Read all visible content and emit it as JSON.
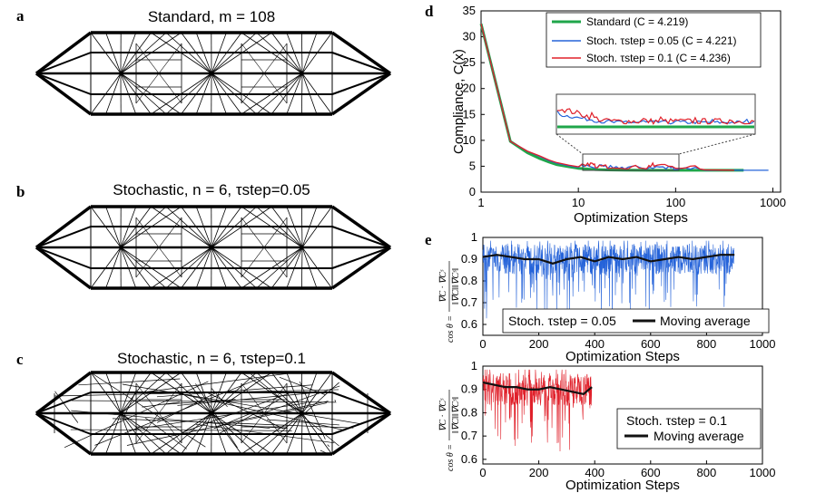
{
  "panel_labels": [
    "a",
    "b",
    "c",
    "d",
    "e"
  ],
  "panel_titles": {
    "a": "Standard, m = 108",
    "b": "Stochastic, n = 6, τstep=0.05",
    "c": "Stochastic, n = 6, τstep=0.1"
  },
  "colors": {
    "standard": "#1fa64a",
    "stoch005": "#2563d9",
    "stoch01": "#e0202a",
    "avg": "#111111"
  },
  "chart_data": [
    {
      "id": "d",
      "type": "line",
      "xscale": "log",
      "xlabel": "Optimization Steps",
      "ylabel": "Compliance, C(x)",
      "xticks": [
        "1",
        "10",
        "100",
        "1000"
      ],
      "yticks": [
        "0",
        "5",
        "10",
        "15",
        "20",
        "25",
        "30",
        "35"
      ],
      "xlim": [
        1,
        1200
      ],
      "ylim": [
        0,
        35
      ],
      "legend_position": "top-right",
      "inset": "zoom of steps 12–115, compliance 4–6",
      "series": [
        {
          "name": "Standard (C = 4.219)",
          "color": "#1fa64a",
          "x": [
            1,
            2,
            3,
            4,
            5,
            6,
            8,
            10,
            15,
            20,
            30,
            50,
            100,
            200,
            500
          ],
          "y": [
            32.5,
            9.8,
            7.6,
            6.5,
            5.8,
            5.3,
            4.9,
            4.6,
            4.35,
            4.28,
            4.24,
            4.22,
            4.22,
            4.22,
            4.219
          ]
        },
        {
          "name": "Stoch. τstep = 0.05 (C = 4.221)",
          "color": "#2563d9",
          "x": [
            1,
            2,
            3,
            4,
            5,
            6,
            8,
            10,
            15,
            20,
            30,
            50,
            80,
            100,
            200,
            500,
            900
          ],
          "y": [
            32.5,
            9.8,
            7.9,
            6.9,
            6.1,
            5.6,
            5.1,
            4.8,
            4.6,
            4.5,
            4.45,
            4.45,
            4.5,
            4.35,
            4.23,
            4.22,
            4.221
          ]
        },
        {
          "name": "Stoch. τstep = 0.1 (C = 4.236)",
          "color": "#e0202a",
          "x": [
            1,
            2,
            3,
            4,
            5,
            6,
            8,
            10,
            13,
            15,
            20,
            30,
            50,
            60,
            100,
            200,
            400
          ],
          "y": [
            32.5,
            9.8,
            7.9,
            7.0,
            6.2,
            5.7,
            5.2,
            4.9,
            5.1,
            4.7,
            4.6,
            4.5,
            4.5,
            5.0,
            4.6,
            4.3,
            4.236
          ]
        }
      ]
    },
    {
      "id": "e1",
      "type": "line",
      "xlabel": "Optimization Steps",
      "ylabel": "cos θ = ∇C · ∇C^s / (‖∇C‖ ‖∇C^s‖)",
      "xticks": [
        "0",
        "200",
        "400",
        "600",
        "800",
        "1000"
      ],
      "yticks": [
        "0.6",
        "0.7",
        "0.8",
        "0.9",
        "1"
      ],
      "xlim": [
        0,
        1000
      ],
      "ylim": [
        0.55,
        1.0
      ],
      "series_count": 900,
      "legend_position": "bottom-center",
      "series": [
        {
          "name": "Stoch. τstep = 0.05",
          "color": "#2563d9",
          "mean": 0.9
        },
        {
          "name": "Moving average",
          "color": "#111111",
          "x": [
            0,
            50,
            100,
            150,
            200,
            250,
            300,
            350,
            400,
            450,
            500,
            550,
            600,
            650,
            700,
            750,
            800,
            850,
            900
          ],
          "y": [
            0.91,
            0.92,
            0.91,
            0.9,
            0.9,
            0.88,
            0.9,
            0.91,
            0.89,
            0.91,
            0.9,
            0.91,
            0.89,
            0.9,
            0.91,
            0.9,
            0.91,
            0.92,
            0.92
          ]
        }
      ]
    },
    {
      "id": "e2",
      "type": "line",
      "xlabel": "Optimization Steps",
      "ylabel": "cos θ = ∇C · ∇C^s / (‖∇C‖ ‖∇C^s‖)",
      "xticks": [
        "0",
        "200",
        "400",
        "600",
        "800",
        "1000"
      ],
      "yticks": [
        "0.6",
        "0.7",
        "0.8",
        "0.9",
        "1"
      ],
      "xlim": [
        0,
        1000
      ],
      "ylim": [
        0.58,
        1.0
      ],
      "series_count": 400,
      "legend_position": "right",
      "series": [
        {
          "name": "Stoch. τstep = 0.1",
          "color": "#e0202a",
          "mean": 0.9
        },
        {
          "name": "Moving average",
          "color": "#111111",
          "x": [
            0,
            40,
            80,
            120,
            160,
            200,
            240,
            280,
            320,
            360,
            390
          ],
          "y": [
            0.93,
            0.92,
            0.91,
            0.91,
            0.9,
            0.9,
            0.91,
            0.9,
            0.89,
            0.88,
            0.91
          ]
        }
      ]
    }
  ]
}
